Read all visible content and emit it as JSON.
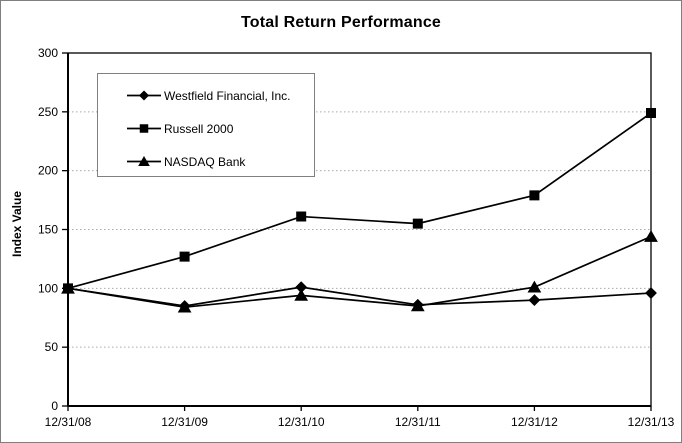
{
  "title": "Total Return Performance",
  "chart_data": {
    "type": "line",
    "title": "Total Return Performance",
    "xlabel": "",
    "ylabel": "Index Value",
    "categories": [
      "12/31/08",
      "12/31/09",
      "12/31/10",
      "12/31/11",
      "12/31/12",
      "12/31/13"
    ],
    "series": [
      {
        "name": "Westfield Financial, Inc.",
        "marker": "diamond",
        "values": [
          100,
          85,
          101,
          86,
          90,
          96
        ]
      },
      {
        "name": "Russell 2000",
        "marker": "square",
        "values": [
          100,
          127,
          161,
          155,
          179,
          249
        ]
      },
      {
        "name": "NASDAQ Bank",
        "marker": "triangle",
        "values": [
          100,
          84,
          94,
          85,
          101,
          144
        ]
      }
    ],
    "ylim": [
      0,
      300
    ],
    "ytick_step": 50,
    "yticks": [
      0,
      50,
      100,
      150,
      200,
      250,
      300
    ],
    "grid": "horizontal-dotted",
    "legend_position": "upper-left-inside",
    "colors": {
      "line": "#000000",
      "grid": "#aaaaaa",
      "plot_border": "#000000",
      "figure_border": "#7f7f7f",
      "background": "#ffffff",
      "text": "#000000"
    }
  }
}
